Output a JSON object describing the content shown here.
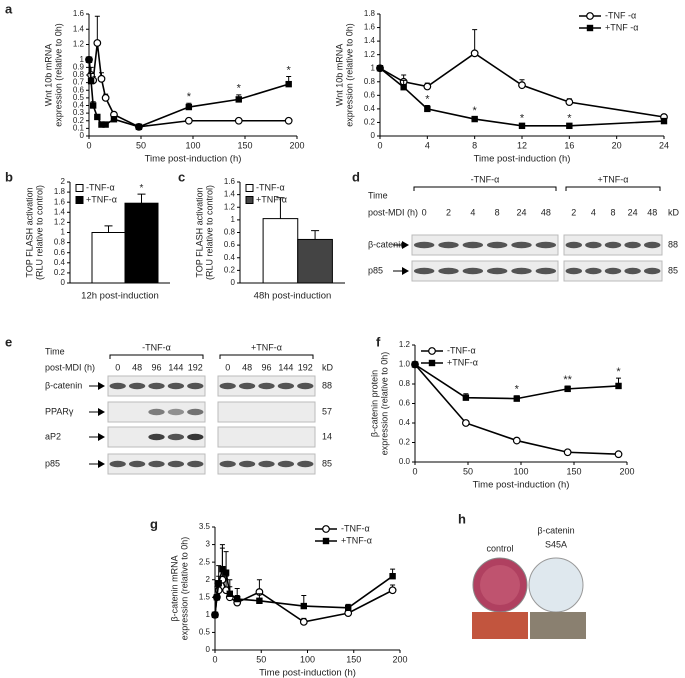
{
  "panel_labels": [
    "a",
    "b",
    "c",
    "d",
    "e",
    "f",
    "g",
    "h"
  ],
  "chart_data": [
    {
      "type": "line",
      "ylabel": [
        "Wnt 10b mRNA",
        "expression (relative to 0h)"
      ],
      "xlabel": "Time post-induction (h)",
      "x": [
        0,
        2,
        4,
        8,
        12,
        16,
        24,
        48,
        96,
        144,
        192
      ],
      "xlim": [
        0,
        200
      ],
      "xticks": [
        0,
        50,
        100,
        150,
        200
      ],
      "ylim": [
        0,
        1.6
      ],
      "yticks": [
        0,
        0.1,
        0.2,
        0.3,
        0.4,
        0.5,
        0.6,
        0.7,
        0.8,
        0.9,
        1,
        1.2,
        1.4,
        1.6
      ],
      "series": [
        {
          "name": "-TNF -α",
          "color": "#000000",
          "marker": "circle-open",
          "values": [
            1.0,
            0.8,
            0.73,
            1.22,
            0.75,
            0.5,
            0.28,
            0.12,
            0.2,
            0.2,
            0.2
          ],
          "errors": [
            null,
            0.1,
            0.05,
            0.35,
            0.08,
            0.05,
            0.03,
            null,
            null,
            null,
            null
          ],
          "significance": [
            null,
            null,
            null,
            null,
            null,
            null,
            null,
            null,
            null,
            null,
            null
          ]
        },
        {
          "name": "+TNF -α",
          "color": "#000000",
          "marker": "square-filled",
          "values": [
            1.0,
            0.72,
            0.4,
            0.25,
            0.15,
            0.15,
            0.22,
            0.12,
            0.38,
            0.48,
            0.68
          ],
          "errors": [
            null,
            0.1,
            0.05,
            0.03,
            0.02,
            0.02,
            0.03,
            0.02,
            0.05,
            0.06,
            0.1
          ],
          "significance": [
            null,
            null,
            null,
            null,
            null,
            null,
            null,
            null,
            "*",
            "*",
            "*"
          ]
        }
      ]
    },
    {
      "type": "line",
      "ylabel": [
        "Wnt 10b mRNA",
        "expression (relative to 0h)"
      ],
      "xlabel": "Time post-induction (h)",
      "x": [
        0,
        2,
        4,
        8,
        12,
        16,
        24
      ],
      "xlim": [
        0,
        24
      ],
      "xticks": [
        0,
        4,
        8,
        12,
        16,
        20,
        24
      ],
      "ylim": [
        0,
        1.8
      ],
      "yticks": [
        0,
        0.2,
        0.4,
        0.6,
        0.8,
        1,
        1.2,
        1.4,
        1.6,
        1.8
      ],
      "legend": "top-right",
      "series": [
        {
          "name": "-TNF -α",
          "color": "#000000",
          "marker": "circle-open",
          "values": [
            1.0,
            0.8,
            0.73,
            1.22,
            0.75,
            0.5,
            0.28
          ],
          "errors": [
            null,
            0.1,
            0.05,
            0.35,
            0.08,
            0.05,
            0.03
          ],
          "significance": [
            null,
            null,
            null,
            null,
            null,
            null,
            null
          ]
        },
        {
          "name": "+TNF -α",
          "color": "#000000",
          "marker": "square-filled",
          "values": [
            1.0,
            0.72,
            0.4,
            0.25,
            0.15,
            0.15,
            0.22
          ],
          "errors": [
            null,
            0.1,
            0.05,
            0.03,
            0.02,
            0.02,
            0.03
          ],
          "significance": [
            null,
            null,
            "*",
            "*",
            "*",
            "*",
            null
          ]
        }
      ]
    },
    {
      "type": "bar",
      "ylabel": [
        "TOP FLASH activation",
        "(RLU relative to control)"
      ],
      "xlabel": "12h post-induction",
      "categories": [
        null
      ],
      "ylim": [
        0,
        2
      ],
      "yticks": [
        0,
        0.2,
        0.4,
        0.6,
        0.8,
        1,
        1.2,
        1.4,
        1.6,
        1.8,
        2
      ],
      "legend": "top-left",
      "series": [
        {
          "name": "-TNF-α",
          "color": "#ffffff",
          "values": [
            1.0
          ],
          "errors": [
            0.13
          ],
          "significance": [
            null
          ]
        },
        {
          "name": "+TNF-α",
          "color": "#000000",
          "values": [
            1.58
          ],
          "errors": [
            0.18
          ],
          "significance": [
            "*"
          ]
        }
      ]
    },
    {
      "type": "bar",
      "ylabel": [
        "TOP FLASH activation",
        "(RLU relative to control)"
      ],
      "xlabel": "48h post-induction",
      "categories": [
        null
      ],
      "ylim": [
        0,
        1.6
      ],
      "yticks": [
        0,
        0.2,
        0.4,
        0.6,
        0.8,
        1,
        1.2,
        1.4,
        1.6
      ],
      "legend": "top-left",
      "series": [
        {
          "name": "-TNF-α",
          "color": "#ffffff",
          "values": [
            1.02
          ],
          "errors": [
            0.33
          ],
          "significance": [
            null
          ]
        },
        {
          "name": "+TNF-α",
          "color": "#444444",
          "values": [
            0.69
          ],
          "errors": [
            0.14
          ],
          "significance": [
            null
          ]
        }
      ]
    },
    {
      "type": "line",
      "ylabel": [
        "β-catenin protein",
        "expression (relative to 0h)"
      ],
      "xlabel": "Time post-induction (h)",
      "x": [
        0,
        48,
        96,
        144,
        192
      ],
      "xlim": [
        0,
        200
      ],
      "xticks": [
        0,
        50,
        100,
        150,
        200
      ],
      "ylim": [
        0,
        1.2
      ],
      "yticks": [
        {
          "value": 0,
          "label": "0.0"
        },
        0.2,
        0.4,
        0.6,
        0.8,
        {
          "value": 1,
          "label": "1.0"
        },
        1.2
      ],
      "legend": "top-left",
      "series": [
        {
          "name": "-TNF-α",
          "color": "#000000",
          "marker": "circle-open",
          "values": [
            1.0,
            0.4,
            0.22,
            0.1,
            0.08
          ],
          "errors": [
            null,
            0.02,
            0.02,
            0.01,
            0.01
          ],
          "significance": [
            null,
            null,
            null,
            null,
            null
          ]
        },
        {
          "name": "+TNF-α",
          "color": "#000000",
          "marker": "square-filled",
          "values": [
            1.0,
            0.66,
            0.65,
            0.75,
            0.78
          ],
          "errors": [
            null,
            0.04,
            0.03,
            0.03,
            0.08
          ],
          "significance": [
            null,
            null,
            "*",
            "**",
            "*"
          ]
        }
      ]
    },
    {
      "type": "line",
      "ylabel": [
        "β-catenin mRNA",
        "expression (relative to 0h)"
      ],
      "xlabel": "Time post-induction (h)",
      "x": [
        0,
        2,
        4,
        8,
        12,
        16,
        24,
        48,
        96,
        144,
        192
      ],
      "xlim": [
        0,
        200
      ],
      "xticks": [
        0,
        50,
        100,
        150,
        200
      ],
      "ylim": [
        0,
        3.5
      ],
      "yticks": [
        0,
        0.5,
        1,
        1.5,
        2,
        2.5,
        3,
        3.5
      ],
      "legend": "top-right",
      "series": [
        {
          "name": "-TNF-α",
          "color": "#000000",
          "marker": "circle-open",
          "values": [
            1.0,
            1.5,
            1.7,
            2.0,
            1.7,
            1.5,
            1.35,
            1.65,
            0.8,
            1.05,
            1.7
          ],
          "errors": [
            null,
            0.3,
            0.4,
            0.9,
            0.4,
            0.3,
            0.2,
            0.35,
            0.1,
            0.1,
            0.15
          ],
          "significance": [
            null,
            null,
            null,
            null,
            null,
            null,
            null,
            null,
            null,
            null,
            null
          ]
        },
        {
          "name": "+TNF-α",
          "color": "#000000",
          "marker": "square-filled",
          "values": [
            1.0,
            1.5,
            1.9,
            2.3,
            2.2,
            1.6,
            1.45,
            1.4,
            1.25,
            1.2,
            2.1
          ],
          "errors": [
            null,
            0.4,
            0.5,
            0.7,
            0.6,
            0.4,
            0.3,
            0.2,
            0.3,
            0.1,
            0.2
          ],
          "significance": [
            null,
            null,
            null,
            null,
            null,
            null,
            null,
            null,
            null,
            null,
            null
          ]
        }
      ]
    }
  ],
  "blots": [
    {
      "time_label": "Time",
      "time_sublabel": "post-MDI (h)",
      "kd_label": "kD",
      "groups": [
        {
          "name": "-TNF-α",
          "lanes": [
            0,
            2,
            4,
            8,
            24,
            48
          ]
        },
        {
          "name": "+TNF-α",
          "lanes": [
            2,
            4,
            8,
            24,
            48
          ]
        }
      ],
      "rows": [
        {
          "name": "β-catenin",
          "kd": 88
        },
        {
          "name": "p85",
          "kd": 85
        }
      ]
    },
    {
      "time_label": "Time",
      "time_sublabel": "post-MDI (h)",
      "kd_label": "kD",
      "groups": [
        {
          "name": "-TNF-α",
          "lanes": [
            0,
            48,
            96,
            144,
            192
          ]
        },
        {
          "name": "+TNF-α",
          "lanes": [
            0,
            48,
            96,
            144,
            192
          ]
        }
      ],
      "rows": [
        {
          "name": "β-catenin",
          "kd": 88
        },
        {
          "name": "PPARγ",
          "kd": 57
        },
        {
          "name": "aP2",
          "kd": 14
        },
        {
          "name": "p85",
          "kd": 85
        }
      ]
    }
  ],
  "images": {
    "control": "control",
    "mutant": [
      "β-catenin",
      "S45A"
    ]
  }
}
